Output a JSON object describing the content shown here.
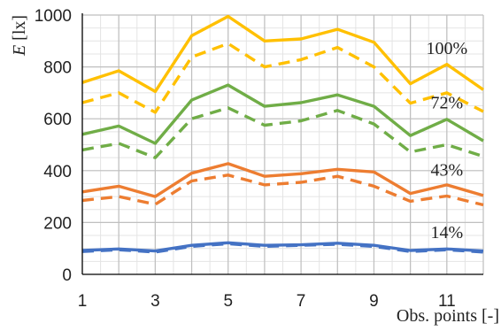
{
  "chart_data": {
    "type": "line",
    "title": "",
    "xlabel": "Obs. points [-]",
    "ylabel": {
      "main": "E",
      "unit": " [lx]"
    },
    "xlim": [
      1,
      12
    ],
    "ylim": [
      0,
      1000
    ],
    "x": [
      1,
      2,
      3,
      4,
      5,
      6,
      7,
      8,
      9,
      10,
      11,
      12
    ],
    "x_ticks": [
      1,
      3,
      5,
      7,
      9,
      11
    ],
    "y_ticks": [
      0,
      200,
      400,
      600,
      800,
      1000
    ],
    "grid": true,
    "series": [
      {
        "group": "100%",
        "style": "solid",
        "color": "#FFC000",
        "values": [
          740,
          785,
          705,
          920,
          995,
          900,
          908,
          945,
          895,
          735,
          810,
          712
        ]
      },
      {
        "group": "100%",
        "style": "dashed",
        "color": "#FFC000",
        "values": [
          662,
          700,
          625,
          838,
          890,
          800,
          828,
          875,
          800,
          660,
          700,
          628
        ]
      },
      {
        "group": "72%",
        "style": "solid",
        "color": "#70AD47",
        "values": [
          540,
          572,
          505,
          672,
          730,
          648,
          662,
          692,
          648,
          535,
          598,
          515
        ]
      },
      {
        "group": "72%",
        "style": "dashed",
        "color": "#70AD47",
        "values": [
          480,
          505,
          450,
          600,
          642,
          575,
          592,
          632,
          580,
          472,
          500,
          455
        ]
      },
      {
        "group": "43%",
        "style": "solid",
        "color": "#ED7D31",
        "values": [
          318,
          340,
          300,
          390,
          427,
          378,
          388,
          405,
          395,
          312,
          345,
          304
        ]
      },
      {
        "group": "43%",
        "style": "dashed",
        "color": "#ED7D31",
        "values": [
          285,
          300,
          270,
          360,
          383,
          345,
          355,
          378,
          340,
          282,
          302,
          268
        ]
      },
      {
        "group": "14%",
        "style": "solid",
        "color": "#4472C4",
        "values": [
          92,
          98,
          90,
          112,
          122,
          112,
          114,
          120,
          112,
          92,
          98,
          90
        ]
      },
      {
        "group": "14%",
        "style": "dashed",
        "color": "#4472C4",
        "values": [
          88,
          95,
          86,
          108,
          118,
          108,
          112,
          116,
          108,
          88,
          95,
          86
        ]
      }
    ],
    "annotations": [
      {
        "text": "100%",
        "x": 11,
        "y": 850
      },
      {
        "text": "72%",
        "x": 11,
        "y": 640
      },
      {
        "text": "43%",
        "x": 11,
        "y": 380
      },
      {
        "text": "14%",
        "x": 11,
        "y": 140
      }
    ]
  }
}
